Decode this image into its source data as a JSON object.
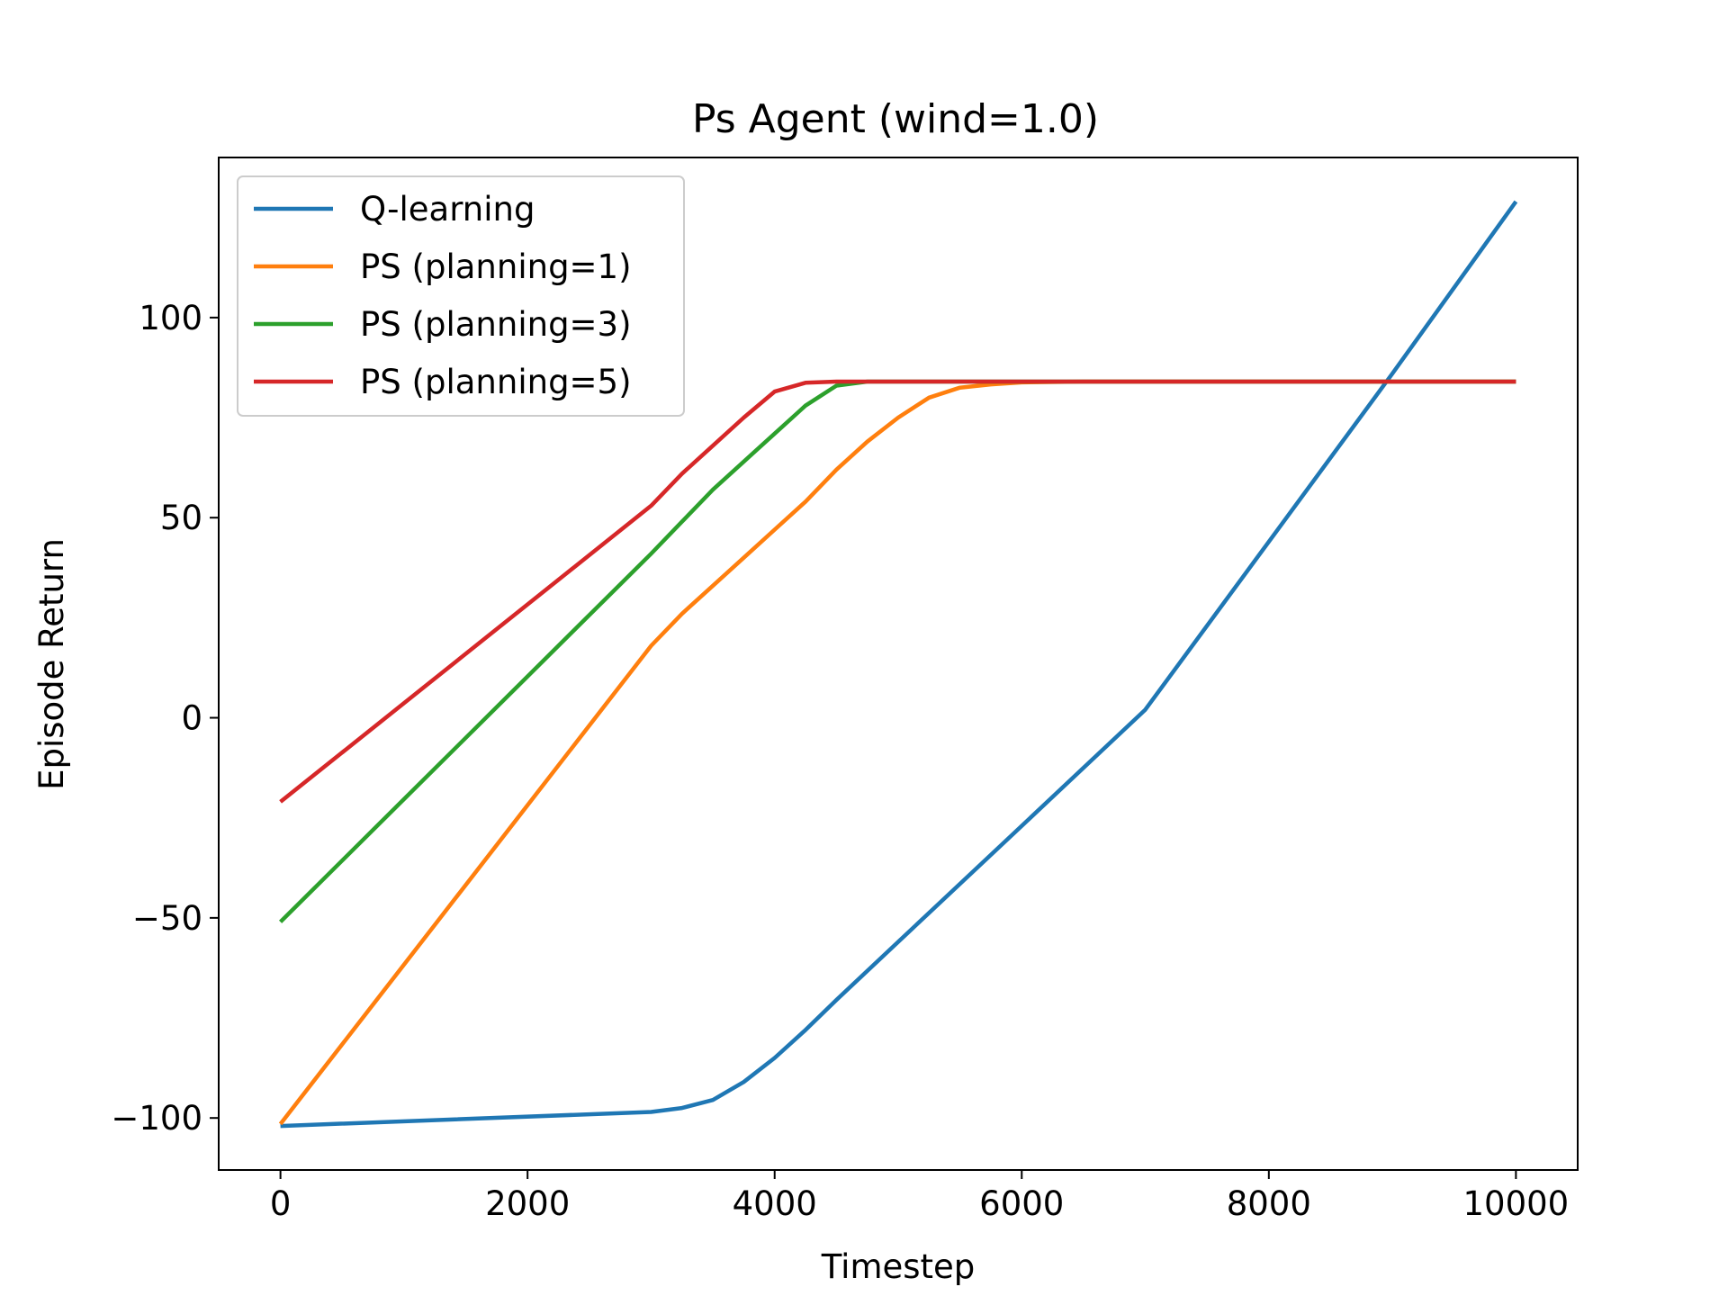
{
  "chart_data": {
    "type": "line",
    "title": "Ps Agent (wind=1.0)",
    "xlabel": "Timestep",
    "ylabel": "Episode Return",
    "xlim": [
      -500,
      10500
    ],
    "ylim": [
      -113,
      140
    ],
    "x_ticks": [
      0,
      2000,
      4000,
      6000,
      8000,
      10000
    ],
    "x_tick_labels": [
      "0",
      "2000",
      "4000",
      "6000",
      "8000",
      "10000"
    ],
    "y_ticks": [
      -100,
      -50,
      0,
      50,
      100
    ],
    "y_tick_labels": [
      "−100",
      "−50",
      "0",
      "50",
      "100"
    ],
    "grid": false,
    "legend_position": "upper left",
    "series": [
      {
        "name": "Q-learning",
        "color": "#1f77b4",
        "x": [
          0,
          3000,
          3250,
          3500,
          3750,
          4000,
          4250,
          4500,
          5000,
          6000,
          7000,
          8000,
          9000,
          10000
        ],
        "y": [
          -102,
          -98.5,
          -97.5,
          -95.5,
          -91,
          -85,
          -78,
          -70.5,
          -56,
          -27,
          2,
          44,
          86,
          129
        ]
      },
      {
        "name": "PS (planning=1)",
        "color": "#ff7f0e",
        "x": [
          0,
          3000,
          3250,
          3500,
          3750,
          4000,
          4250,
          4500,
          4750,
          5000,
          5250,
          5500,
          5750,
          6000,
          6500,
          7000,
          8000,
          9000,
          10000
        ],
        "y": [
          -101.5,
          18,
          26,
          33,
          40,
          47,
          54,
          62,
          69,
          75,
          80,
          82.5,
          83.3,
          83.8,
          84,
          84,
          84,
          84,
          84
        ]
      },
      {
        "name": "PS (planning=3)",
        "color": "#2ca02c",
        "x": [
          0,
          3000,
          3250,
          3500,
          3750,
          4000,
          4250,
          4500,
          4750,
          5000,
          6000,
          7000,
          8000,
          9000,
          10000
        ],
        "y": [
          -51,
          41,
          49,
          57,
          64,
          71,
          78,
          83,
          84,
          84,
          84,
          84,
          84,
          84,
          84
        ]
      },
      {
        "name": "PS (planning=5)",
        "color": "#d62728",
        "x": [
          0,
          3000,
          3250,
          3500,
          3750,
          4000,
          4250,
          4500,
          4750,
          5000,
          6000,
          7000,
          8000,
          9000,
          10000
        ],
        "y": [
          -21,
          53,
          61,
          68,
          75,
          81.5,
          83.7,
          84,
          84,
          84,
          84,
          84,
          84,
          84,
          84
        ]
      }
    ]
  }
}
